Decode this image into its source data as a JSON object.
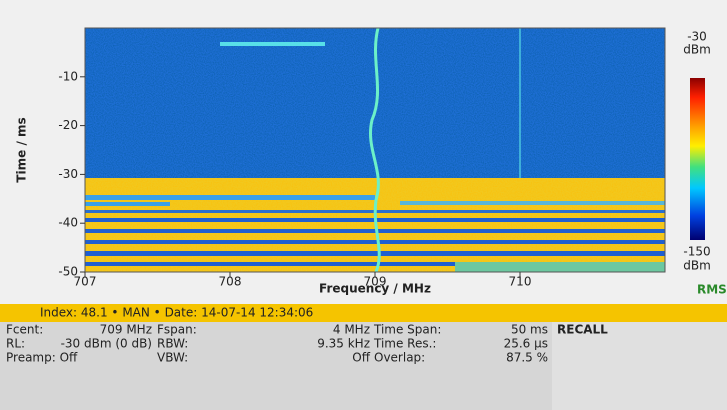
{
  "chart_data": {
    "type": "spectrogram",
    "xlabel": "Frequency / MHz",
    "ylabel": "Time / ms",
    "xlim": [
      707,
      711
    ],
    "xticks": [
      707,
      708,
      709,
      710
    ],
    "ylim": [
      -50,
      0
    ],
    "yticks": [
      -10,
      -20,
      -30,
      -40,
      -50
    ],
    "colorbar": {
      "max": -30,
      "min": -150,
      "unit": "dBm"
    },
    "detector": "RMS"
  },
  "info_bar": "Index: 48.1 • MAN • Date: 14-07-14 12:34:06",
  "settings": {
    "columns": [
      {
        "items": [
          [
            "Fcent:",
            "709 MHz"
          ],
          [
            "RL:",
            "-30 dBm (0 dB)"
          ],
          [
            "Preamp: Off"
          ]
        ]
      },
      {
        "items": [
          [
            "Fspan:",
            "4 MHz"
          ],
          [
            "RBW:",
            "9.35 kHz"
          ],
          [
            "VBW:",
            "Off"
          ]
        ]
      },
      {
        "items": [
          [
            "Time Span:",
            "50 ms"
          ],
          [
            "Time Res.:",
            "25.6 µs"
          ],
          [
            "Overlap:",
            "87.5 %"
          ]
        ]
      },
      {
        "items": [
          [
            "RECALL"
          ]
        ]
      }
    ]
  }
}
